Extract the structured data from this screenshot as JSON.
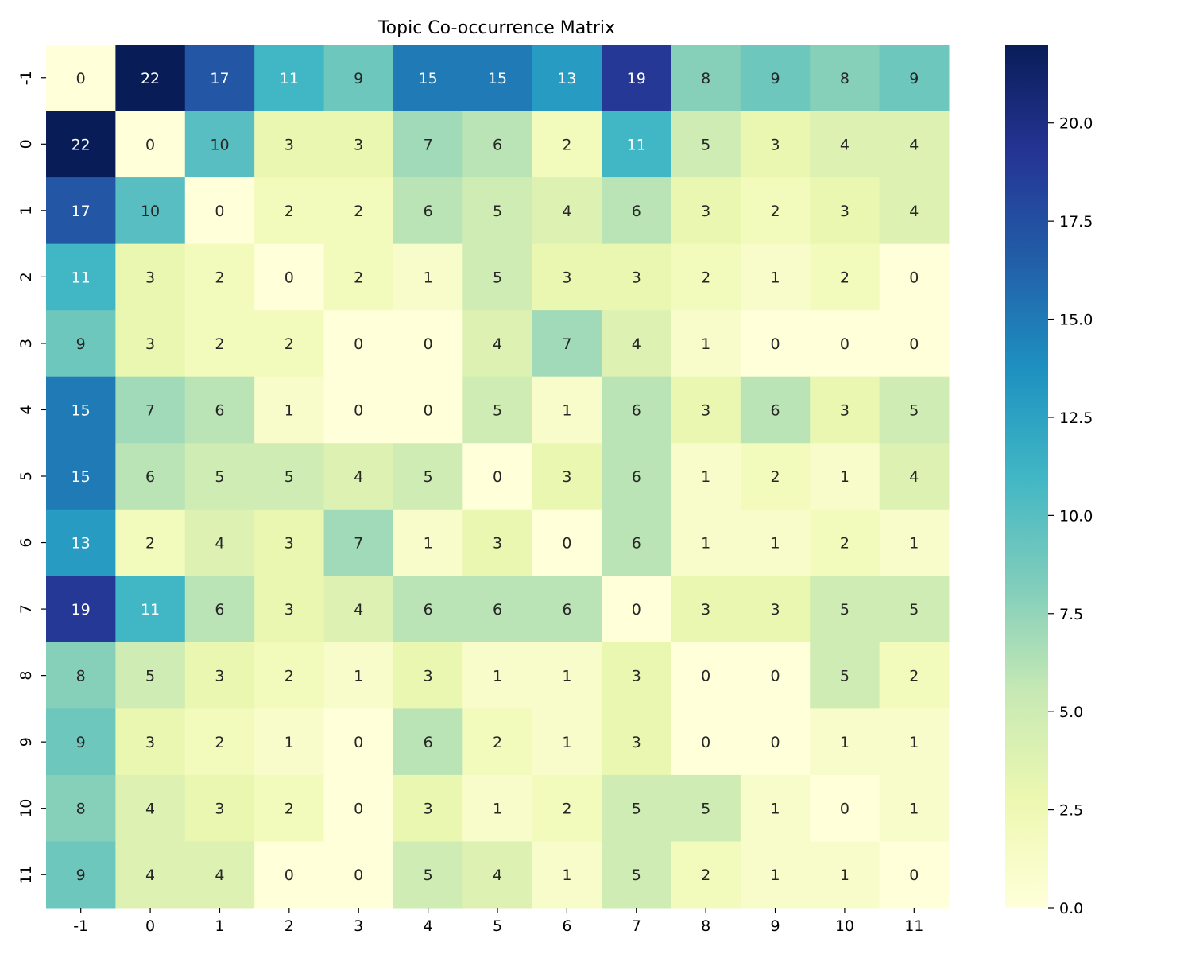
{
  "chart_data": {
    "type": "heatmap",
    "title": "Topic Co-occurrence Matrix",
    "xlabel": "",
    "ylabel": "",
    "x_labels": [
      "-1",
      "0",
      "1",
      "2",
      "3",
      "4",
      "5",
      "6",
      "7",
      "8",
      "9",
      "10",
      "11"
    ],
    "y_labels": [
      "-1",
      "0",
      "1",
      "2",
      "3",
      "4",
      "5",
      "6",
      "7",
      "8",
      "9",
      "10",
      "11"
    ],
    "matrix": [
      [
        0,
        22,
        17,
        11,
        9,
        15,
        15,
        13,
        19,
        8,
        9,
        8,
        9
      ],
      [
        22,
        0,
        10,
        3,
        3,
        7,
        6,
        2,
        11,
        5,
        3,
        4,
        4
      ],
      [
        17,
        10,
        0,
        2,
        2,
        6,
        5,
        4,
        6,
        3,
        2,
        3,
        4
      ],
      [
        11,
        3,
        2,
        0,
        2,
        1,
        5,
        3,
        3,
        2,
        1,
        2,
        0
      ],
      [
        9,
        3,
        2,
        2,
        0,
        0,
        4,
        7,
        4,
        1,
        0,
        0,
        0
      ],
      [
        15,
        7,
        6,
        1,
        0,
        0,
        5,
        1,
        6,
        3,
        6,
        3,
        5
      ],
      [
        15,
        6,
        5,
        5,
        4,
        5,
        0,
        3,
        6,
        1,
        2,
        1,
        4
      ],
      [
        13,
        2,
        4,
        3,
        7,
        1,
        3,
        0,
        6,
        1,
        1,
        2,
        1
      ],
      [
        19,
        11,
        6,
        3,
        4,
        6,
        6,
        6,
        0,
        3,
        3,
        5,
        5
      ],
      [
        8,
        5,
        3,
        2,
        1,
        3,
        1,
        1,
        3,
        0,
        0,
        5,
        2
      ],
      [
        9,
        3,
        2,
        1,
        0,
        6,
        2,
        1,
        3,
        0,
        0,
        1,
        1
      ],
      [
        8,
        4,
        3,
        2,
        0,
        3,
        1,
        2,
        5,
        5,
        1,
        0,
        1
      ],
      [
        9,
        4,
        4,
        0,
        0,
        5,
        4,
        1,
        5,
        2,
        1,
        1,
        0
      ]
    ],
    "colorbar": {
      "colormap": "YlGnBu",
      "vmin": 0,
      "vmax": 22,
      "ticks": [
        0.0,
        2.5,
        5.0,
        7.5,
        10.0,
        12.5,
        15.0,
        17.5,
        20.0
      ],
      "tick_labels": [
        "0.0",
        "2.5",
        "5.0",
        "7.5",
        "10.0",
        "12.5",
        "15.0",
        "17.5",
        "20.0"
      ]
    },
    "annotations": true
  },
  "colors": {
    "ylgnbu": [
      "#ffffd9",
      "#edf8b1",
      "#c7e9b4",
      "#7fcdbb",
      "#41b6c4",
      "#1d91c0",
      "#225ea8",
      "#253494",
      "#081d58"
    ],
    "text_dark": "#262626",
    "text_light": "#ffffff"
  }
}
